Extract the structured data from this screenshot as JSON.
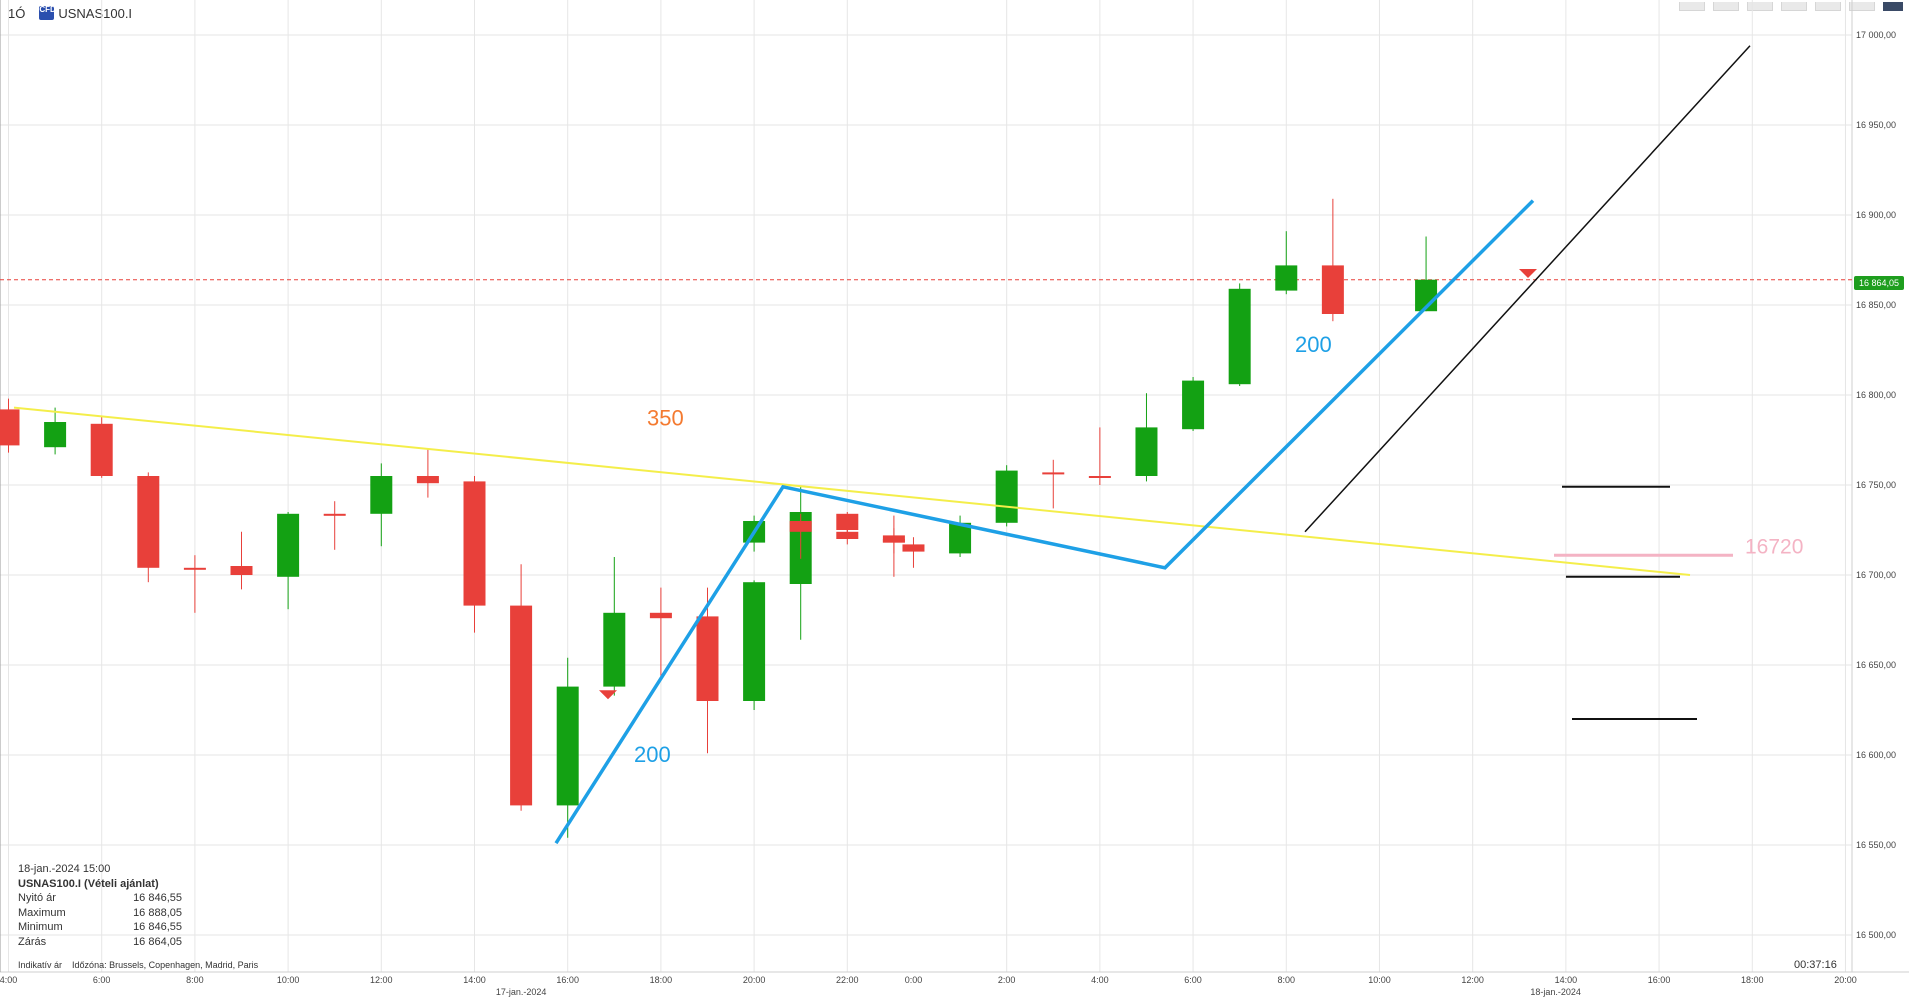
{
  "header": {
    "timeframe": "1Ó",
    "symbol": "USNAS100.I",
    "badge": "CFD"
  },
  "info_panel": {
    "date": "18-jan.-2024 15:00",
    "title": "USNAS100.I (Vételi ajánlat)",
    "rows": [
      {
        "label": "Nyitó ár",
        "value": "16 846,55"
      },
      {
        "label": "Maximum",
        "value": "16 888,05"
      },
      {
        "label": "Minimum",
        "value": "16 846,55"
      },
      {
        "label": "Zárás",
        "value": "16 864,05"
      }
    ]
  },
  "footer": {
    "note": "Indikatív ár",
    "timezone": "Időzóna: Brussels, Copenhagen, Madrid, Paris"
  },
  "countdown": "00:37:16",
  "current_price_label": "16 864,05",
  "colors": {
    "up": "#13a113",
    "down": "#e8403a",
    "blue": "#1ea0e6",
    "yellow": "#f4ee4a",
    "pink": "#f4b3c4",
    "orange": "#f47a30"
  },
  "chart_data": {
    "type": "candlestick",
    "y_ticks": [
      16500,
      16550,
      16600,
      16650,
      16700,
      16750,
      16800,
      16850,
      16900,
      16950,
      17000
    ],
    "y_tick_labels": [
      "16 500,00",
      "16 550,00",
      "16 600,00",
      "16 650,00",
      "16 700,00",
      "16 750,00",
      "16 800,00",
      "16 850,00",
      "16 900,00",
      "16 950,00",
      "17 000,00"
    ],
    "ylim": [
      16480,
      17010
    ],
    "x_labels": [
      "4:00",
      "6:00",
      "8:00",
      "10:00",
      "12:00",
      "14:00",
      "16:00",
      "18:00",
      "20:00",
      "22:00",
      "0:00",
      "2:00",
      "4:00",
      "6:00",
      "8:00",
      "10:00",
      "12:00",
      "14:00",
      "16:00",
      "18:00",
      "20:00"
    ],
    "date_labels": [
      "17-jan.-2024",
      "18-jan.-2024"
    ],
    "current_price": 16864.05,
    "candles": [
      {
        "t": "17-jan 04:00",
        "o": 16792,
        "h": 16798,
        "l": 16768,
        "c": 16772
      },
      {
        "t": "17-jan 05:00",
        "o": 16771,
        "h": 16793,
        "l": 16767,
        "c": 16785
      },
      {
        "t": "17-jan 06:00",
        "o": 16784,
        "h": 16788,
        "l": 16754,
        "c": 16755
      },
      {
        "t": "17-jan 07:00",
        "o": 16755,
        "h": 16757,
        "l": 16696,
        "c": 16704
      },
      {
        "t": "17-jan 08:00",
        "o": 16704,
        "h": 16711,
        "l": 16679,
        "c": 16703
      },
      {
        "t": "17-jan 09:00",
        "o": 16705,
        "h": 16724,
        "l": 16692,
        "c": 16700
      },
      {
        "t": "17-jan 10:00",
        "o": 16699,
        "h": 16735,
        "l": 16681,
        "c": 16734
      },
      {
        "t": "17-jan 11:00",
        "o": 16734,
        "h": 16741,
        "l": 16714,
        "c": 16733
      },
      {
        "t": "17-jan 12:00",
        "o": 16734,
        "h": 16762,
        "l": 16716,
        "c": 16755
      },
      {
        "t": "17-jan 13:00",
        "o": 16755,
        "h": 16770,
        "l": 16743,
        "c": 16751
      },
      {
        "t": "17-jan 14:00",
        "o": 16752,
        "h": 16755,
        "l": 16668,
        "c": 16683
      },
      {
        "t": "17-jan 15:00",
        "o": 16683,
        "h": 16706,
        "l": 16569,
        "c": 16572
      },
      {
        "t": "17-jan 16:00",
        "o": 16572,
        "h": 16654,
        "l": 16554,
        "c": 16638
      },
      {
        "t": "17-jan 17:00",
        "o": 16638,
        "h": 16710,
        "l": 16633,
        "c": 16679
      },
      {
        "t": "17-jan 18:00",
        "o": 16679,
        "h": 16693,
        "l": 16642,
        "c": 16676
      },
      {
        "t": "17-jan 19:00",
        "o": 16677,
        "h": 16693,
        "l": 16601,
        "c": 16630
      },
      {
        "t": "17-jan 20:00",
        "o": 16630,
        "h": 16697,
        "l": 16625,
        "c": 16696
      },
      {
        "t": "17-jan 21:00",
        "o": 16695,
        "h": 16749,
        "l": 16664,
        "c": 16735
      },
      {
        "t": "17-jan 22:00",
        "o": 16734,
        "h": 16735,
        "l": 16721,
        "c": 16725
      },
      {
        "t": "17-jan 23:00",
        "o": 16722,
        "h": 16726,
        "l": 16699,
        "c": 16718
      },
      {
        "t": "18-jan 00:00",
        "o": 16718,
        "h": 16733,
        "l": 16713,
        "c": 16730
      },
      {
        "t": "18-jan 01:00",
        "o": 16730,
        "h": 16734,
        "l": 16709,
        "c": 16724
      },
      {
        "t": "18-jan 02:00",
        "o": 16724,
        "h": 16733,
        "l": 16717,
        "c": 16720
      },
      {
        "t": "18-jan 03:00",
        "o": 16720,
        "h": 16733,
        "l": 16712,
        "c": 16718
      },
      {
        "t": "18-jan 04:00",
        "o": 16717,
        "h": 16721,
        "l": 16704,
        "c": 16713
      },
      {
        "t": "18-jan 05:00",
        "o": 16712,
        "h": 16733,
        "l": 16710,
        "c": 16729
      },
      {
        "t": "18-jan 06:00",
        "o": 16729,
        "h": 16761,
        "l": 16727,
        "c": 16758
      },
      {
        "t": "18-jan 07:00",
        "o": 16757,
        "h": 16764,
        "l": 16737,
        "c": 16756
      },
      {
        "t": "18-jan 08:00",
        "o": 16755,
        "h": 16782,
        "l": 16750,
        "c": 16754
      },
      {
        "t": "18-jan 09:00",
        "o": 16755,
        "h": 16801,
        "l": 16752,
        "c": 16782
      },
      {
        "t": "18-jan 10:00",
        "o": 16781,
        "h": 16810,
        "l": 16780,
        "c": 16808
      },
      {
        "t": "18-jan 11:00",
        "o": 16806,
        "h": 16862,
        "l": 16805,
        "c": 16859
      },
      {
        "t": "18-jan 12:00",
        "o": 16858,
        "h": 16891,
        "l": 16856,
        "c": 16872
      },
      {
        "t": "18-jan 13:00",
        "o": 16872,
        "h": 16909,
        "l": 16841,
        "c": 16845
      },
      {
        "t": "18-jan 15:00",
        "o": 16846.55,
        "h": 16888.05,
        "l": 16846.55,
        "c": 16864.05
      }
    ],
    "annotations": [
      {
        "text": "350",
        "color": "#f47a30"
      },
      {
        "text": "200",
        "color": "#1ea0e6"
      },
      {
        "text": "200",
        "color": "#1ea0e6"
      },
      {
        "text": "16720",
        "color": "#f4b3c4"
      }
    ]
  }
}
